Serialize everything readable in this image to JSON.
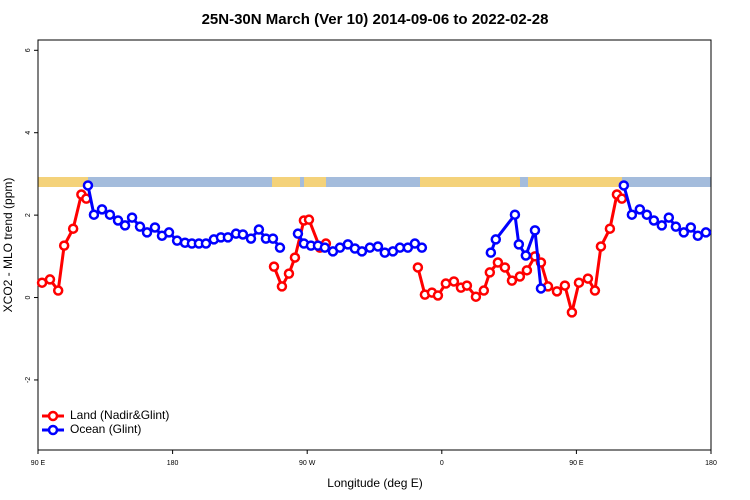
{
  "chart_data": {
    "type": "line",
    "title": "25N-30N March (Ver 10)   2014-09-06 to 2022-02-28",
    "x_label": "Longitude (deg E)",
    "y_label": "XCO2 - MLO trend (ppm)",
    "xlim": [
      90,
      540
    ],
    "xticks": [
      {
        "value": 90,
        "label": "90 E"
      },
      180,
      {
        "value": 270,
        "label": "90 W"
      },
      {
        "value": 360,
        "label": "0"
      },
      {
        "value": 450,
        "label": "90 E"
      },
      {
        "value": 540,
        "label": "180"
      }
    ],
    "ylim": [
      -3.7,
      6.25
    ],
    "yticks": [
      -2,
      0,
      2,
      4,
      6
    ],
    "legend": "bottom-left",
    "series": [
      {
        "name": "Land (Nadir&Glint)",
        "color": "#ff0000",
        "x": [
          92.7,
          98,
          103.5,
          107.5,
          113.5,
          119,
          122.3,
          null,
          247.8,
          253.1,
          257.8,
          261.8,
          267.8,
          271.2,
          278.5,
          282.5,
          null,
          344.0,
          348.7,
          353.4,
          357.4,
          362.7,
          368.1,
          372.8,
          376.8,
          382.8,
          388.1,
          392.1,
          397.5,
          402.2,
          406.9,
          412.2,
          416.9,
          422.3,
          426.3,
          431.0,
          437.0,
          442.3,
          447.0,
          451.7,
          457.7,
          462.4,
          466.4,
          472.4,
          477.1,
          480.4
        ],
        "values": [
          0.36,
          0.44,
          0.17,
          1.26,
          1.67,
          2.5,
          2.4,
          null,
          0.75,
          0.27,
          0.58,
          0.97,
          1.87,
          1.89,
          1.21,
          1.31,
          null,
          0.73,
          0.07,
          0.12,
          0.05,
          0.34,
          0.39,
          0.24,
          0.29,
          0.02,
          0.17,
          0.61,
          0.85,
          0.73,
          0.41,
          0.51,
          0.66,
          1.0,
          0.85,
          0.27,
          0.15,
          0.29,
          -0.36,
          0.36,
          0.46,
          0.17,
          1.24,
          1.67,
          2.5,
          2.4
        ]
      },
      {
        "name": "Ocean (Glint)",
        "color": "#0000ff",
        "x": [
          123.4,
          127.4,
          132.8,
          138.1,
          143.5,
          148.2,
          152.9,
          158.2,
          162.9,
          168.2,
          172.9,
          177.6,
          183.0,
          188.3,
          192.9,
          197.6,
          202.3,
          207.6,
          212.3,
          217.0,
          222.4,
          227.0,
          232.4,
          237.7,
          242.4,
          247.1,
          251.8,
          null,
          263.8,
          267.8,
          272.5,
          277.2,
          281.8,
          287.2,
          291.9,
          297.2,
          301.9,
          306.6,
          311.9,
          317.3,
          321.9,
          327.3,
          332.0,
          337.3,
          342.0,
          346.7,
          null,
          392.8,
          396.1,
          408.9,
          411.5,
          416.2,
          422.3,
          426.3,
          null,
          481.7,
          487.1,
          492.4,
          497.1,
          501.8,
          507.1,
          511.8,
          516.5,
          521.8,
          526.5,
          531.2,
          536.6
        ],
        "values": [
          2.72,
          2.01,
          2.14,
          2.01,
          1.87,
          1.75,
          1.94,
          1.72,
          1.58,
          1.7,
          1.5,
          1.58,
          1.38,
          1.33,
          1.31,
          1.31,
          1.31,
          1.41,
          1.46,
          1.46,
          1.55,
          1.53,
          1.43,
          1.65,
          1.43,
          1.43,
          1.21,
          null,
          1.55,
          1.31,
          1.26,
          1.26,
          1.21,
          1.12,
          1.21,
          1.29,
          1.19,
          1.12,
          1.21,
          1.24,
          1.09,
          1.12,
          1.21,
          1.21,
          1.31,
          1.21,
          null,
          1.09,
          1.41,
          2.01,
          1.29,
          1.02,
          1.63,
          0.22,
          null,
          2.72,
          2.01,
          2.14,
          2.01,
          1.87,
          1.75,
          1.94,
          1.72,
          1.58,
          1.7,
          1.5,
          1.58
        ]
      }
    ]
  }
}
